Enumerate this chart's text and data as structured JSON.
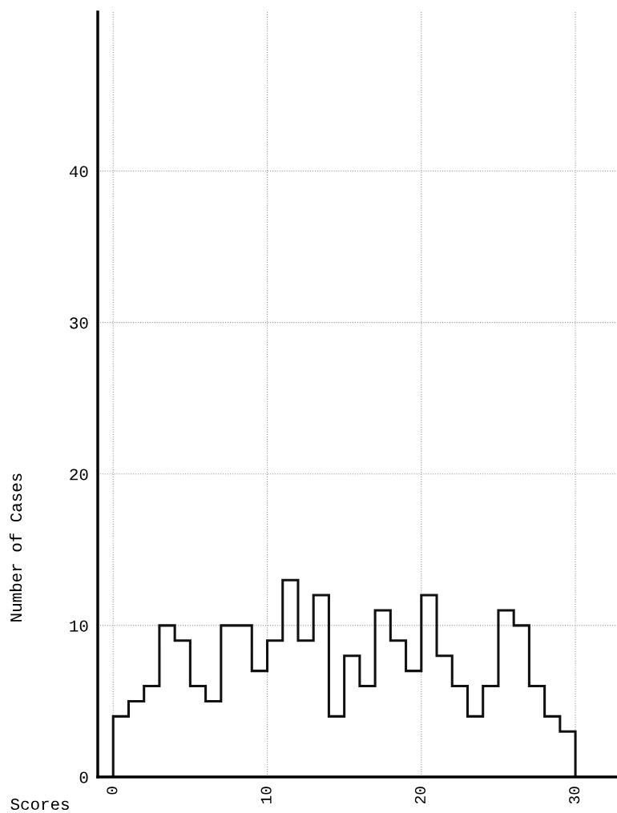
{
  "chart_data": {
    "type": "histogram",
    "xlabel": "Scores",
    "ylabel": "Number of Cases",
    "bins": [
      0,
      1,
      2,
      3,
      4,
      5,
      6,
      7,
      8,
      9,
      10,
      11,
      12,
      13,
      14,
      15,
      16,
      17,
      18,
      19,
      20,
      21,
      22,
      23,
      24,
      25,
      26,
      27,
      28,
      29,
      30
    ],
    "values": [
      4,
      5,
      6,
      10,
      9,
      6,
      5,
      10,
      10,
      7,
      9,
      13,
      9,
      12,
      4,
      8,
      6,
      11,
      9,
      7,
      12,
      8,
      6,
      4,
      6,
      11,
      10,
      6,
      4,
      3
    ],
    "color": "#111111",
    "xlim": [
      -1,
      32.7
    ],
    "ylim": [
      0,
      50.5
    ],
    "xticks": [
      0,
      10,
      20,
      30
    ],
    "yticks": [
      0,
      10,
      20,
      30,
      40
    ],
    "grid": true
  }
}
